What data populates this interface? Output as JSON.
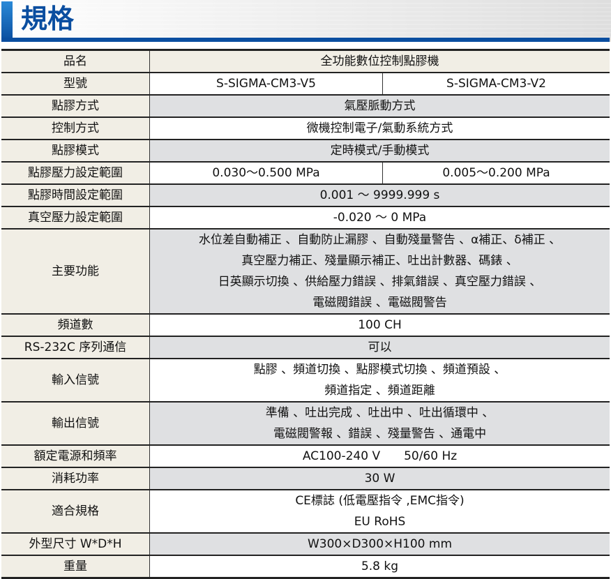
{
  "header": {
    "title": "規格"
  },
  "rows": [
    {
      "label": "品名",
      "values": [
        "全功能數位控制點膠機"
      ],
      "style": "b"
    },
    {
      "label": "型號",
      "values": [
        "S-SIGMA-CM3-V5",
        "S-SIGMA-CM3-V2"
      ],
      "style": "w"
    },
    {
      "label": "點膠方式",
      "values": [
        "氣壓脈動方式"
      ],
      "style": "g"
    },
    {
      "label": "控制方式",
      "values": [
        "微機控制電子/氣動系統方式"
      ],
      "style": "w"
    },
    {
      "label": "點膠模式",
      "values": [
        "定時模式/手動模式"
      ],
      "style": "g"
    },
    {
      "label": "點膠壓力設定範圍",
      "values": [
        "0.030～0.500 MPa",
        "0.005～0.200 MPa"
      ],
      "style": "w"
    },
    {
      "label": "點膠時間設定範圍",
      "values": [
        "0.001 ～ 9999.999 s"
      ],
      "style": "g"
    },
    {
      "label": "真空壓力設定範圍",
      "values": [
        "-0.020 ～ 0 MPa"
      ],
      "style": "w"
    },
    {
      "label": "主要功能",
      "lines": [
        "水位差自動補正 、自動防止漏膠 、自動殘量警告 、α補正、δ補正 、",
        "真空壓力補正、殘量顯示補正、吐出計數器、碼錶 、",
        "日英顯示切換 、供給壓力錯誤 、排氣錯誤 、真空壓力錯誤 、",
        "電磁閥錯誤 、電磁閥警告"
      ],
      "style": "g"
    },
    {
      "label": "頻道數",
      "values": [
        "100 CH"
      ],
      "style": "w"
    },
    {
      "label": "RS-232C 序列通信",
      "values": [
        "可以"
      ],
      "style": "g"
    },
    {
      "label": "輸入信號",
      "lines": [
        "點膠 、頻道切換 、點膠模式切換 、頻道預設 、",
        "頻道指定 、頻道距離"
      ],
      "style": "w"
    },
    {
      "label": "輸出信號",
      "lines": [
        "準備 、吐出完成 、吐出中 、吐出循環中 、",
        "電磁閥警報 、錯誤 、殘量警告 、通電中"
      ],
      "style": "g"
    },
    {
      "label": "額定電源和頻率",
      "values": [
        "AC100-240 V　　50/60 Hz"
      ],
      "style": "w"
    },
    {
      "label": "消耗功率",
      "values": [
        "30 W"
      ],
      "style": "g"
    },
    {
      "label": "適合規格",
      "lines": [
        "CE標誌 (低電壓指令 ,EMC指令)",
        "EU RoHS"
      ],
      "style": "w"
    },
    {
      "label": "外型尺寸 W*D*H",
      "values": [
        "W300×D300×H100 mm"
      ],
      "style": "g"
    },
    {
      "label": "重量",
      "values": [
        "5.8 kg"
      ],
      "style": "w"
    }
  ]
}
